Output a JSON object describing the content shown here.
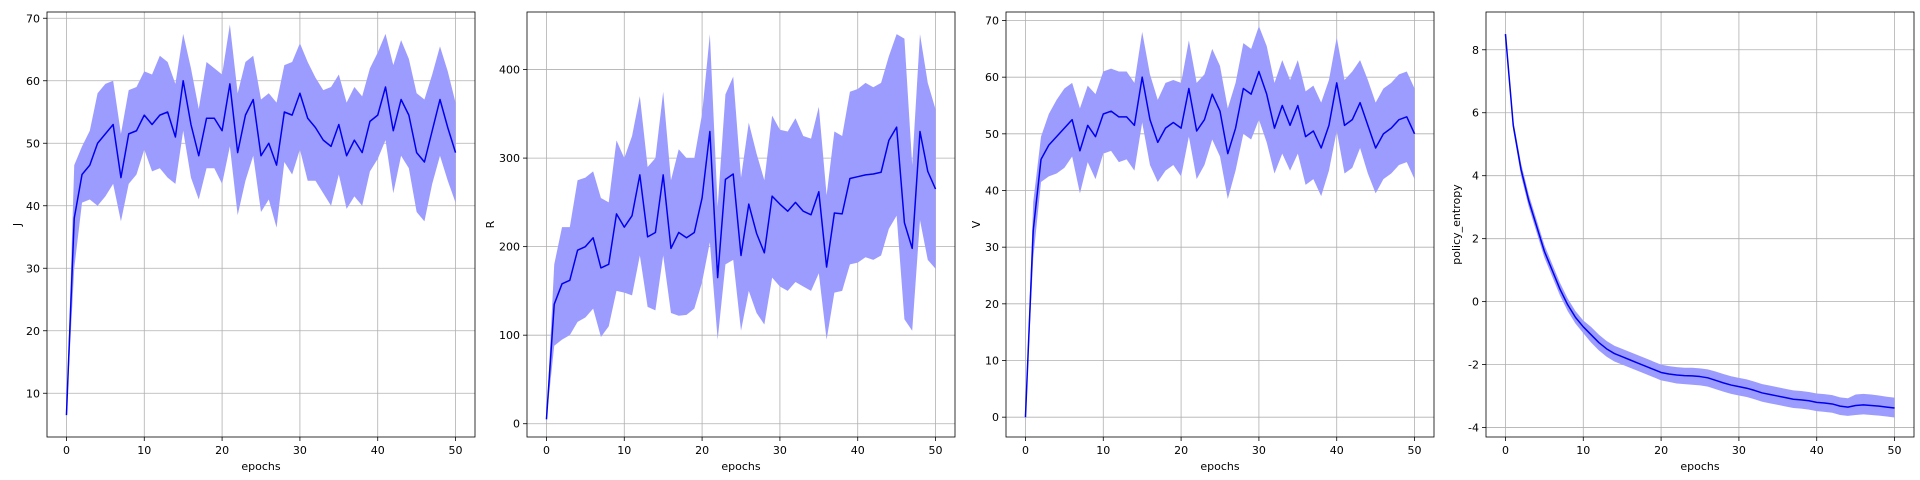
{
  "chart_data": [
    {
      "type": "line",
      "xlabel": "epochs",
      "ylabel": "J",
      "xlim": [
        -2.5,
        52.5
      ],
      "ylim": [
        3.0,
        71.0
      ],
      "xticks": [
        0,
        10,
        20,
        30,
        40,
        50
      ],
      "yticks": [
        10,
        20,
        30,
        40,
        50,
        60,
        70
      ],
      "grid": true,
      "line_color": "#0000ee",
      "band_color": "#9c9cff",
      "x": [
        0,
        1,
        2,
        3,
        4,
        5,
        6,
        7,
        8,
        9,
        10,
        11,
        12,
        13,
        14,
        15,
        16,
        17,
        18,
        19,
        20,
        21,
        22,
        23,
        24,
        25,
        26,
        27,
        28,
        29,
        30,
        31,
        32,
        33,
        34,
        35,
        36,
        37,
        38,
        39,
        40,
        41,
        42,
        43,
        44,
        45,
        46,
        47,
        48,
        49,
        50
      ],
      "mean": [
        6.5,
        38.0,
        45.0,
        46.5,
        50.0,
        51.5,
        53.0,
        44.5,
        51.5,
        52.0,
        54.5,
        53.0,
        54.5,
        55.0,
        51.0,
        60.0,
        53.0,
        48.0,
        54.0,
        54.0,
        52.0,
        59.5,
        48.5,
        54.5,
        57.0,
        48.0,
        50.0,
        46.5,
        55.0,
        54.5,
        58.0,
        54.0,
        52.5,
        50.5,
        49.5,
        53.0,
        48.0,
        50.5,
        48.5,
        53.5,
        54.5,
        59.0,
        52.0,
        57.0,
        54.5,
        48.5,
        47.0,
        52.0,
        57.0,
        52.5,
        48.5
      ],
      "lower": [
        6.5,
        30.0,
        40.5,
        41.0,
        40.0,
        41.5,
        43.5,
        37.5,
        43.5,
        45.0,
        49.0,
        45.5,
        46.0,
        44.5,
        43.5,
        52.0,
        44.5,
        41.0,
        46.0,
        46.0,
        43.5,
        49.5,
        38.5,
        44.0,
        48.0,
        39.0,
        41.0,
        36.5,
        47.0,
        45.0,
        49.0,
        44.0,
        44.0,
        42.0,
        40.0,
        45.0,
        39.5,
        41.5,
        40.0,
        45.5,
        47.5,
        50.5,
        42.0,
        48.0,
        46.0,
        39.0,
        37.5,
        43.5,
        48.0,
        44.0,
        40.5
      ],
      "upper": [
        6.5,
        46.5,
        49.5,
        52.0,
        58.0,
        59.5,
        60.0,
        51.5,
        58.5,
        59.0,
        61.5,
        61.0,
        64.0,
        63.0,
        59.5,
        67.5,
        62.0,
        55.5,
        63.0,
        62.0,
        61.0,
        69.0,
        58.0,
        63.0,
        64.0,
        57.0,
        58.0,
        56.5,
        62.5,
        63.0,
        66.0,
        63.0,
        60.5,
        58.5,
        59.0,
        61.0,
        56.5,
        59.0,
        57.5,
        62.0,
        64.5,
        67.5,
        62.5,
        66.5,
        63.5,
        58.0,
        57.0,
        61.0,
        65.5,
        61.5,
        56.5
      ]
    },
    {
      "type": "line",
      "xlabel": "epochs",
      "ylabel": "R",
      "xlim": [
        -2.5,
        52.5
      ],
      "ylim": [
        -15.0,
        465.0
      ],
      "xticks": [
        0,
        10,
        20,
        30,
        40,
        50
      ],
      "yticks": [
        0,
        100,
        200,
        300,
        400
      ],
      "grid": true,
      "line_color": "#0000ee",
      "band_color": "#9c9cff",
      "x": [
        0,
        1,
        2,
        3,
        4,
        5,
        6,
        7,
        8,
        9,
        10,
        11,
        12,
        13,
        14,
        15,
        16,
        17,
        18,
        19,
        20,
        21,
        22,
        23,
        24,
        25,
        26,
        27,
        28,
        29,
        30,
        31,
        32,
        33,
        34,
        35,
        36,
        37,
        38,
        39,
        40,
        41,
        42,
        43,
        44,
        45,
        46,
        47,
        48,
        49,
        50
      ],
      "mean": [
        5,
        135,
        158,
        162,
        196,
        200,
        210,
        176,
        180,
        237,
        222,
        235,
        281,
        211,
        216,
        281,
        198,
        216,
        210,
        216,
        255,
        330,
        165,
        276,
        282,
        190,
        248,
        215,
        193,
        257,
        248,
        240,
        250,
        240,
        236,
        262,
        177,
        238,
        237,
        277,
        279,
        281,
        282,
        284,
        320,
        335,
        227,
        198,
        330,
        285,
        265
      ],
      "lower": [
        5,
        88,
        95,
        100,
        115,
        120,
        130,
        98,
        110,
        150,
        148,
        145,
        190,
        132,
        128,
        190,
        125,
        122,
        123,
        130,
        160,
        205,
        95,
        180,
        185,
        105,
        150,
        125,
        112,
        165,
        155,
        150,
        160,
        155,
        150,
        170,
        95,
        148,
        150,
        180,
        182,
        188,
        185,
        190,
        220,
        235,
        118,
        105,
        230,
        185,
        175
      ],
      "upper": [
        5,
        180,
        222,
        222,
        275,
        278,
        285,
        255,
        250,
        320,
        300,
        325,
        370,
        290,
        300,
        375,
        275,
        310,
        300,
        300,
        350,
        440,
        245,
        372,
        392,
        278,
        340,
        305,
        275,
        348,
        332,
        330,
        345,
        325,
        322,
        358,
        258,
        330,
        325,
        375,
        378,
        385,
        380,
        385,
        415,
        440,
        435,
        292,
        440,
        385,
        355
      ]
    },
    {
      "type": "line",
      "xlabel": "epochs",
      "ylabel": "V",
      "xlim": [
        -2.5,
        52.5
      ],
      "ylim": [
        -3.5,
        71.5
      ],
      "xticks": [
        0,
        10,
        20,
        30,
        40,
        50
      ],
      "yticks": [
        0,
        10,
        20,
        30,
        40,
        50,
        60,
        70
      ],
      "grid": true,
      "line_color": "#0000ee",
      "band_color": "#9c9cff",
      "x": [
        0,
        1,
        2,
        3,
        4,
        5,
        6,
        7,
        8,
        9,
        10,
        11,
        12,
        13,
        14,
        15,
        16,
        17,
        18,
        19,
        20,
        21,
        22,
        23,
        24,
        25,
        26,
        27,
        28,
        29,
        30,
        31,
        32,
        33,
        34,
        35,
        36,
        37,
        38,
        39,
        40,
        41,
        42,
        43,
        44,
        45,
        46,
        47,
        48,
        49,
        50
      ],
      "mean": [
        0,
        33.0,
        45.5,
        48.0,
        49.5,
        51.0,
        52.5,
        47.0,
        51.5,
        49.5,
        53.5,
        54.0,
        53.0,
        53.0,
        51.5,
        60.0,
        52.5,
        48.5,
        51.0,
        52.0,
        51.0,
        58.0,
        50.5,
        52.5,
        57.0,
        54.0,
        46.5,
        51.0,
        58.0,
        57.0,
        61.0,
        57.0,
        51.0,
        55.0,
        51.5,
        55.0,
        49.5,
        50.5,
        47.5,
        51.5,
        59.0,
        51.5,
        52.5,
        55.5,
        51.5,
        47.5,
        50.0,
        51.0,
        52.5,
        53.0,
        50.0
      ],
      "lower": [
        0,
        28.0,
        41.5,
        42.5,
        43.0,
        44.0,
        46.0,
        39.5,
        45.0,
        42.0,
        46.5,
        47.0,
        45.0,
        45.5,
        43.5,
        52.0,
        44.5,
        41.5,
        43.5,
        44.5,
        42.5,
        49.5,
        42.0,
        44.5,
        49.0,
        46.0,
        38.5,
        43.5,
        50.0,
        49.0,
        52.5,
        48.5,
        43.0,
        46.5,
        43.5,
        46.5,
        41.0,
        42.0,
        39.0,
        43.5,
        50.5,
        43.0,
        44.0,
        47.5,
        43.0,
        39.5,
        42.0,
        43.0,
        44.5,
        45.0,
        42.0
      ],
      "upper": [
        0,
        38.0,
        49.5,
        53.5,
        56.0,
        58.0,
        59.0,
        54.5,
        58.5,
        57.0,
        61.0,
        61.5,
        61.0,
        61.0,
        59.0,
        68.0,
        60.5,
        56.0,
        59.0,
        59.5,
        59.0,
        66.5,
        59.0,
        60.5,
        65.0,
        62.0,
        54.5,
        59.0,
        66.0,
        65.0,
        69.0,
        65.5,
        59.0,
        63.0,
        59.5,
        63.0,
        57.5,
        58.5,
        55.5,
        59.5,
        67.0,
        59.5,
        61.0,
        63.0,
        59.5,
        55.5,
        58.0,
        59.0,
        60.5,
        61.0,
        58.0
      ]
    },
    {
      "type": "line",
      "xlabel": "epochs",
      "ylabel": "policy_entropy",
      "xlim": [
        -2.5,
        52.5
      ],
      "ylim": [
        -4.3,
        9.2
      ],
      "xticks": [
        0,
        10,
        20,
        30,
        40,
        50
      ],
      "yticks": [
        -4,
        -2,
        0,
        2,
        4,
        6,
        8
      ],
      "grid": true,
      "line_color": "#0000ee",
      "band_color": "#9c9cff",
      "x": [
        0,
        1,
        2,
        3,
        4,
        5,
        6,
        7,
        8,
        9,
        10,
        11,
        12,
        13,
        14,
        15,
        16,
        17,
        18,
        19,
        20,
        21,
        22,
        23,
        24,
        25,
        26,
        27,
        28,
        29,
        30,
        31,
        32,
        33,
        34,
        35,
        36,
        37,
        38,
        39,
        40,
        41,
        42,
        43,
        44,
        45,
        46,
        47,
        48,
        49,
        50
      ],
      "mean": [
        8.5,
        5.6,
        4.2,
        3.2,
        2.4,
        1.6,
        1.0,
        0.4,
        -0.1,
        -0.5,
        -0.8,
        -1.05,
        -1.3,
        -1.5,
        -1.65,
        -1.75,
        -1.85,
        -1.95,
        -2.05,
        -2.15,
        -2.25,
        -2.3,
        -2.33,
        -2.35,
        -2.36,
        -2.38,
        -2.42,
        -2.5,
        -2.58,
        -2.65,
        -2.7,
        -2.75,
        -2.82,
        -2.9,
        -2.95,
        -3.0,
        -3.05,
        -3.1,
        -3.12,
        -3.15,
        -3.2,
        -3.22,
        -3.25,
        -3.32,
        -3.35,
        -3.3,
        -3.28,
        -3.3,
        -3.32,
        -3.35,
        -3.38
      ],
      "lower": [
        8.5,
        5.45,
        4.0,
        3.0,
        2.2,
        1.4,
        0.8,
        0.2,
        -0.3,
        -0.7,
        -1.0,
        -1.3,
        -1.55,
        -1.75,
        -1.9,
        -2.0,
        -2.1,
        -2.2,
        -2.3,
        -2.4,
        -2.5,
        -2.55,
        -2.6,
        -2.62,
        -2.64,
        -2.66,
        -2.7,
        -2.78,
        -2.86,
        -2.93,
        -2.98,
        -3.03,
        -3.1,
        -3.18,
        -3.23,
        -3.28,
        -3.33,
        -3.38,
        -3.4,
        -3.43,
        -3.48,
        -3.5,
        -3.53,
        -3.6,
        -3.63,
        -3.6,
        -3.58,
        -3.6,
        -3.62,
        -3.65,
        -3.68
      ],
      "upper": [
        8.5,
        5.75,
        4.4,
        3.4,
        2.6,
        1.8,
        1.2,
        0.6,
        0.1,
        -0.3,
        -0.6,
        -0.8,
        -1.05,
        -1.25,
        -1.4,
        -1.5,
        -1.6,
        -1.7,
        -1.8,
        -1.9,
        -2.0,
        -2.05,
        -2.08,
        -2.1,
        -2.1,
        -2.12,
        -2.15,
        -2.22,
        -2.3,
        -2.37,
        -2.42,
        -2.47,
        -2.54,
        -2.62,
        -2.67,
        -2.72,
        -2.77,
        -2.82,
        -2.84,
        -2.87,
        -2.92,
        -2.94,
        -2.97,
        -3.04,
        -3.07,
        -2.95,
        -2.93,
        -2.95,
        -2.98,
        -3.02,
        -3.05
      ]
    }
  ]
}
